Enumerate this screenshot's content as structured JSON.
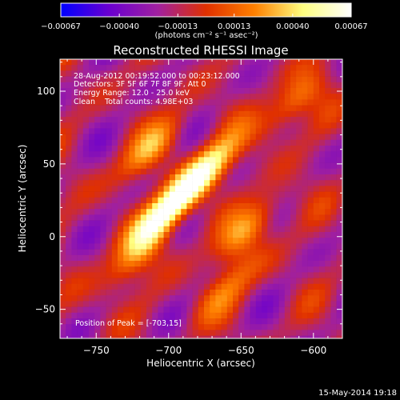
{
  "chart_data": {
    "type": "heatmap",
    "title": "Reconstructed RHESSI Image",
    "xlabel": "Heliocentric X (arcsec)",
    "ylabel": "Heliocentric Y (arcsec)",
    "xlim": [
      -775,
      -580
    ],
    "ylim": [
      -70,
      122
    ],
    "x_ticks": [
      -750,
      -700,
      -650,
      -600
    ],
    "x_tick_labels": [
      "−750",
      "−700",
      "−650",
      "−600"
    ],
    "y_ticks": [
      -50,
      0,
      50,
      100
    ],
    "y_tick_labels": [
      "−50",
      "0",
      "50",
      "100"
    ],
    "colorbar": {
      "range": [
        -0.00067,
        0.00067
      ],
      "ticks": [
        -0.00067,
        -0.0004,
        -0.00013,
        0.00013,
        0.0004,
        0.00067
      ],
      "tick_labels": [
        "−0.00067",
        "−0.00040",
        "−0.00013",
        "0.00013",
        "0.00040",
        "0.00067"
      ],
      "units_label": "(photons cm⁻² s⁻¹ asec⁻²)",
      "colors": [
        "#0000ff",
        "#6a00d0",
        "#a020a0",
        "#e03000",
        "#ff8000",
        "#ffff80",
        "#ffffff"
      ]
    },
    "peak_value": 0.00067,
    "peak_position": [
      -703,
      15
    ],
    "bright_sources": [
      {
        "x": -703,
        "y": 15,
        "intensity": 1.0
      },
      {
        "x": -676,
        "y": 44,
        "intensity": 0.95
      },
      {
        "x": -712,
        "y": 60,
        "intensity": 0.55
      },
      {
        "x": -645,
        "y": 5,
        "intensity": 0.6
      },
      {
        "x": -725,
        "y": -18,
        "intensity": 0.45
      },
      {
        "x": -615,
        "y": 90,
        "intensity": 0.55
      },
      {
        "x": -660,
        "y": -35,
        "intensity": 0.4
      }
    ],
    "annotations": [
      "28-Aug-2012 00:19:52.000 to 00:23:12.000",
      "Detectors: 3F 5F 6F 7F 8F 9F, Att 0",
      "Energy Range: 12.0 - 25.0 keV",
      "Clean    Total counts: 4.98E+03",
      "Position of Peak = [-703,15]"
    ]
  },
  "footer": {
    "date_stamp": "15-May-2014 19:18"
  }
}
